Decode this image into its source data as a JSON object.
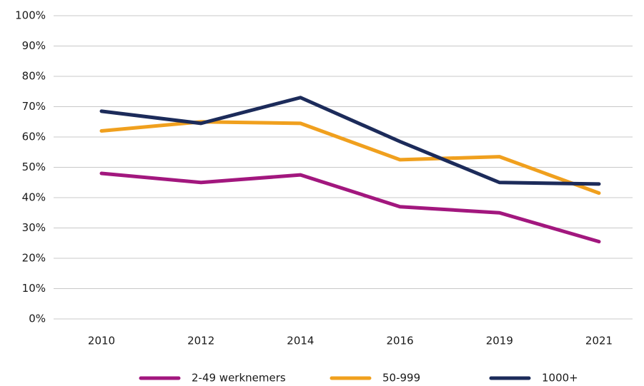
{
  "chart_data": {
    "type": "line",
    "categories": [
      "2010",
      "2012",
      "2014",
      "2016",
      "2019",
      "2021"
    ],
    "series": [
      {
        "name": "2-49 werknemers",
        "color": "#a2177e",
        "values": [
          48,
          45,
          47.5,
          37,
          35,
          25.5
        ]
      },
      {
        "name": "50-999",
        "color": "#f0a01e",
        "values": [
          62,
          65,
          64.5,
          52.5,
          53.5,
          41.5
        ]
      },
      {
        "name": "1000+",
        "color": "#1c2b5a",
        "values": [
          68.5,
          64.5,
          73,
          58.5,
          45,
          44.5
        ]
      }
    ],
    "ylim": [
      0,
      100
    ],
    "yticks": [
      {
        "value": 0,
        "label": "0%"
      },
      {
        "value": 10,
        "label": "10%"
      },
      {
        "value": 20,
        "label": "20%"
      },
      {
        "value": 30,
        "label": "30%"
      },
      {
        "value": 40,
        "label": "40%"
      },
      {
        "value": 50,
        "label": "50%"
      },
      {
        "value": 60,
        "label": "60%"
      },
      {
        "value": 70,
        "label": "70%"
      },
      {
        "value": 80,
        "label": "80%"
      },
      {
        "value": 90,
        "label": "90%"
      },
      {
        "value": 100,
        "label": "100%"
      }
    ],
    "grid": true,
    "legend": "bottom"
  }
}
